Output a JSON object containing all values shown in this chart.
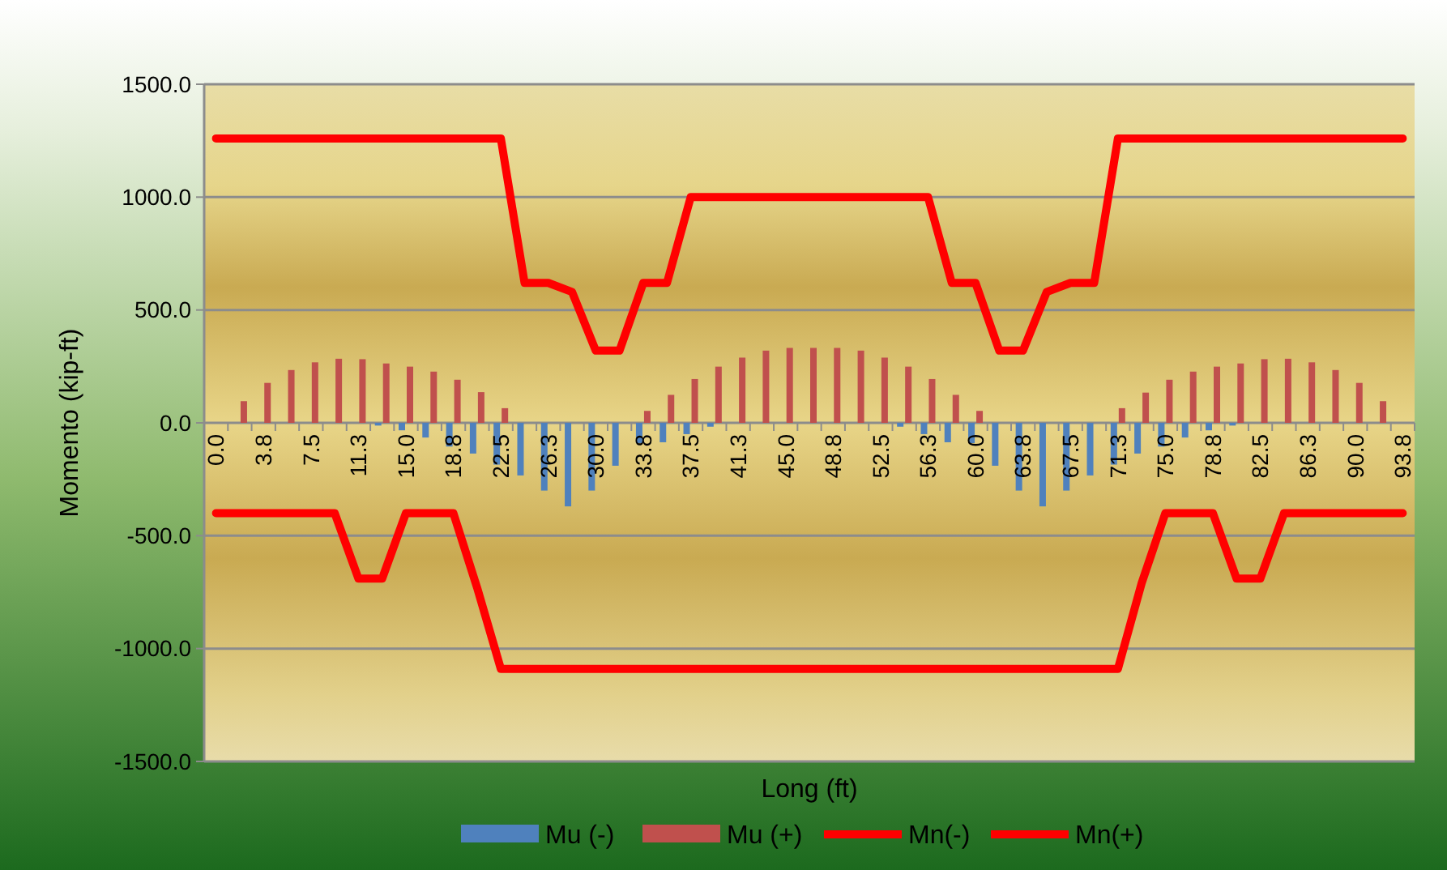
{
  "chart_data": {
    "type": "bar",
    "xlabel": "Long (ft)",
    "ylabel": "Momento (kip-ft)",
    "categories": [
      "0.0",
      null,
      "3.8",
      null,
      "7.5",
      null,
      "11.3",
      null,
      "15.0",
      null,
      "18.8",
      null,
      "22.5",
      null,
      "26.3",
      null,
      "30.0",
      null,
      "33.8",
      null,
      "37.5",
      null,
      "41.3",
      null,
      "45.0",
      null,
      "48.8",
      null,
      "52.5",
      null,
      "56.3",
      null,
      "60.0",
      null,
      "63.8",
      null,
      "67.5",
      null,
      "71.3",
      null,
      "75.0",
      null,
      "78.8",
      null,
      "82.5",
      null,
      "86.3",
      null,
      "90.0",
      null,
      "93.8"
    ],
    "series": [
      {
        "name": "Mu (-)",
        "color": "#4f81bd",
        "values": [
          0,
          0,
          0,
          0,
          0,
          0,
          0,
          -12,
          -33,
          -65,
          -105,
          -136,
          -185,
          -233,
          -300,
          -370,
          -300,
          -190,
          -90,
          -86,
          -50,
          -17,
          0,
          0,
          0,
          0,
          0,
          0,
          0,
          -17,
          -50,
          -86,
          -90,
          -190,
          -300,
          -370,
          -300,
          -233,
          -185,
          -136,
          -105,
          -65,
          -33,
          -12,
          0,
          0,
          0,
          0,
          0,
          0,
          0
        ]
      },
      {
        "name": "Mu (+)",
        "color": "#c0504d",
        "values": [
          0,
          96,
          177,
          234,
          268,
          284,
          282,
          263,
          249,
          227,
          191,
          136,
          65,
          0,
          0,
          0,
          0,
          0,
          53,
          124,
          194,
          249,
          289,
          320,
          332,
          332,
          332,
          320,
          289,
          249,
          194,
          124,
          53,
          0,
          0,
          0,
          0,
          0,
          65,
          134,
          191,
          227,
          249,
          263,
          282,
          284,
          268,
          234,
          177,
          96,
          0
        ]
      },
      {
        "name": "Mn(-)",
        "type": "line",
        "color": "#ff0000",
        "values": [
          -400,
          -400,
          -400,
          -400,
          -400,
          -400,
          -690,
          -690,
          -400,
          -400,
          -400,
          -730,
          -1090,
          -1090,
          -1090,
          -1090,
          -1090,
          -1090,
          -1090,
          -1090,
          -1090,
          -1090,
          -1090,
          -1090,
          -1090,
          -1090,
          -1090,
          -1090,
          -1090,
          -1090,
          -1090,
          -1090,
          -1090,
          -1090,
          -1090,
          -1090,
          -1090,
          -1090,
          -1090,
          -710,
          -400,
          -400,
          -400,
          -690,
          -690,
          -400,
          -400,
          -400,
          -400,
          -400,
          -400
        ]
      },
      {
        "name": "Mn(+)",
        "type": "line",
        "color": "#ff0000",
        "values": [
          1260,
          1260,
          1260,
          1260,
          1260,
          1260,
          1260,
          1260,
          1260,
          1260,
          1260,
          1260,
          1260,
          620,
          620,
          580,
          320,
          320,
          620,
          620,
          1000,
          1000,
          1000,
          1000,
          1000,
          1000,
          1000,
          1000,
          1000,
          1000,
          1000,
          620,
          620,
          320,
          320,
          580,
          620,
          620,
          1260,
          1260,
          1260,
          1260,
          1260,
          1260,
          1260,
          1260,
          1260,
          1260,
          1260,
          1260,
          1260
        ]
      }
    ],
    "ylim": [
      -1500,
      1500
    ],
    "yticks": [
      {
        "value": -1500,
        "label": "-1500.0"
      },
      {
        "value": -1000,
        "label": "-1000.0"
      },
      {
        "value": -500,
        "label": "-500.0"
      },
      {
        "value": 0,
        "label": "0.0"
      },
      {
        "value": 500,
        "label": "500.0"
      },
      {
        "value": 1000,
        "label": "1000.0"
      },
      {
        "value": 1500,
        "label": "1500.0"
      }
    ],
    "grid": "y",
    "legend": "bottom",
    "line_style": "solid",
    "marker": "none"
  }
}
